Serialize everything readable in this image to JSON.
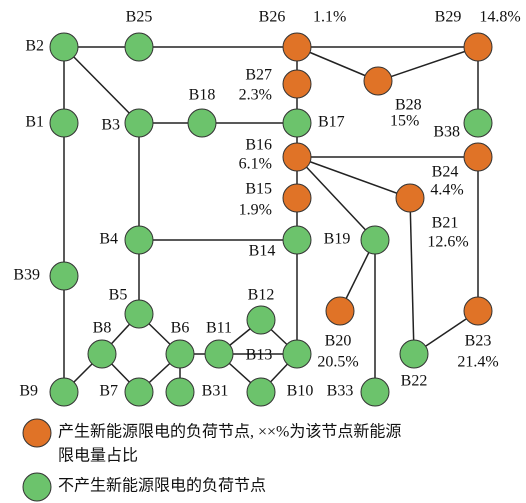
{
  "nodes": [
    {
      "label": "B2"
    },
    {
      "label": "B25"
    },
    {
      "label": "B26",
      "share": "1.1%"
    },
    {
      "label": "B29",
      "share": "14.8%"
    },
    {
      "label": "B27",
      "share": "2.3%"
    },
    {
      "label": "B28",
      "share": "15%"
    },
    {
      "label": "B1"
    },
    {
      "label": "B3"
    },
    {
      "label": "B18"
    },
    {
      "label": "B17"
    },
    {
      "label": "B38"
    },
    {
      "label": "B16",
      "share": "6.1%"
    },
    {
      "label": "B24",
      "share": "4.4%"
    },
    {
      "label": "B15",
      "share": "1.9%"
    },
    {
      "label": "B21",
      "share": "12.6%"
    },
    {
      "label": "B4"
    },
    {
      "label": "B14"
    },
    {
      "label": "B19"
    },
    {
      "label": "B39"
    },
    {
      "label": "B5"
    },
    {
      "label": "B12"
    },
    {
      "label": "B20",
      "share": "20.5%"
    },
    {
      "label": "B23",
      "share": "21.4%"
    },
    {
      "label": "B8"
    },
    {
      "label": "B6"
    },
    {
      "label": "B11"
    },
    {
      "label": "B13"
    },
    {
      "label": "B22"
    },
    {
      "label": "B9"
    },
    {
      "label": "B7"
    },
    {
      "label": "B31"
    },
    {
      "label": "B10"
    },
    {
      "label": "B33"
    }
  ],
  "legend": [
    {
      "lines": [
        "产生新能源限电的负荷节点, ××%为该节点新能源",
        "限电量占比"
      ]
    },
    {
      "lines": [
        "不产生新能源限电的负荷节点"
      ]
    }
  ]
}
